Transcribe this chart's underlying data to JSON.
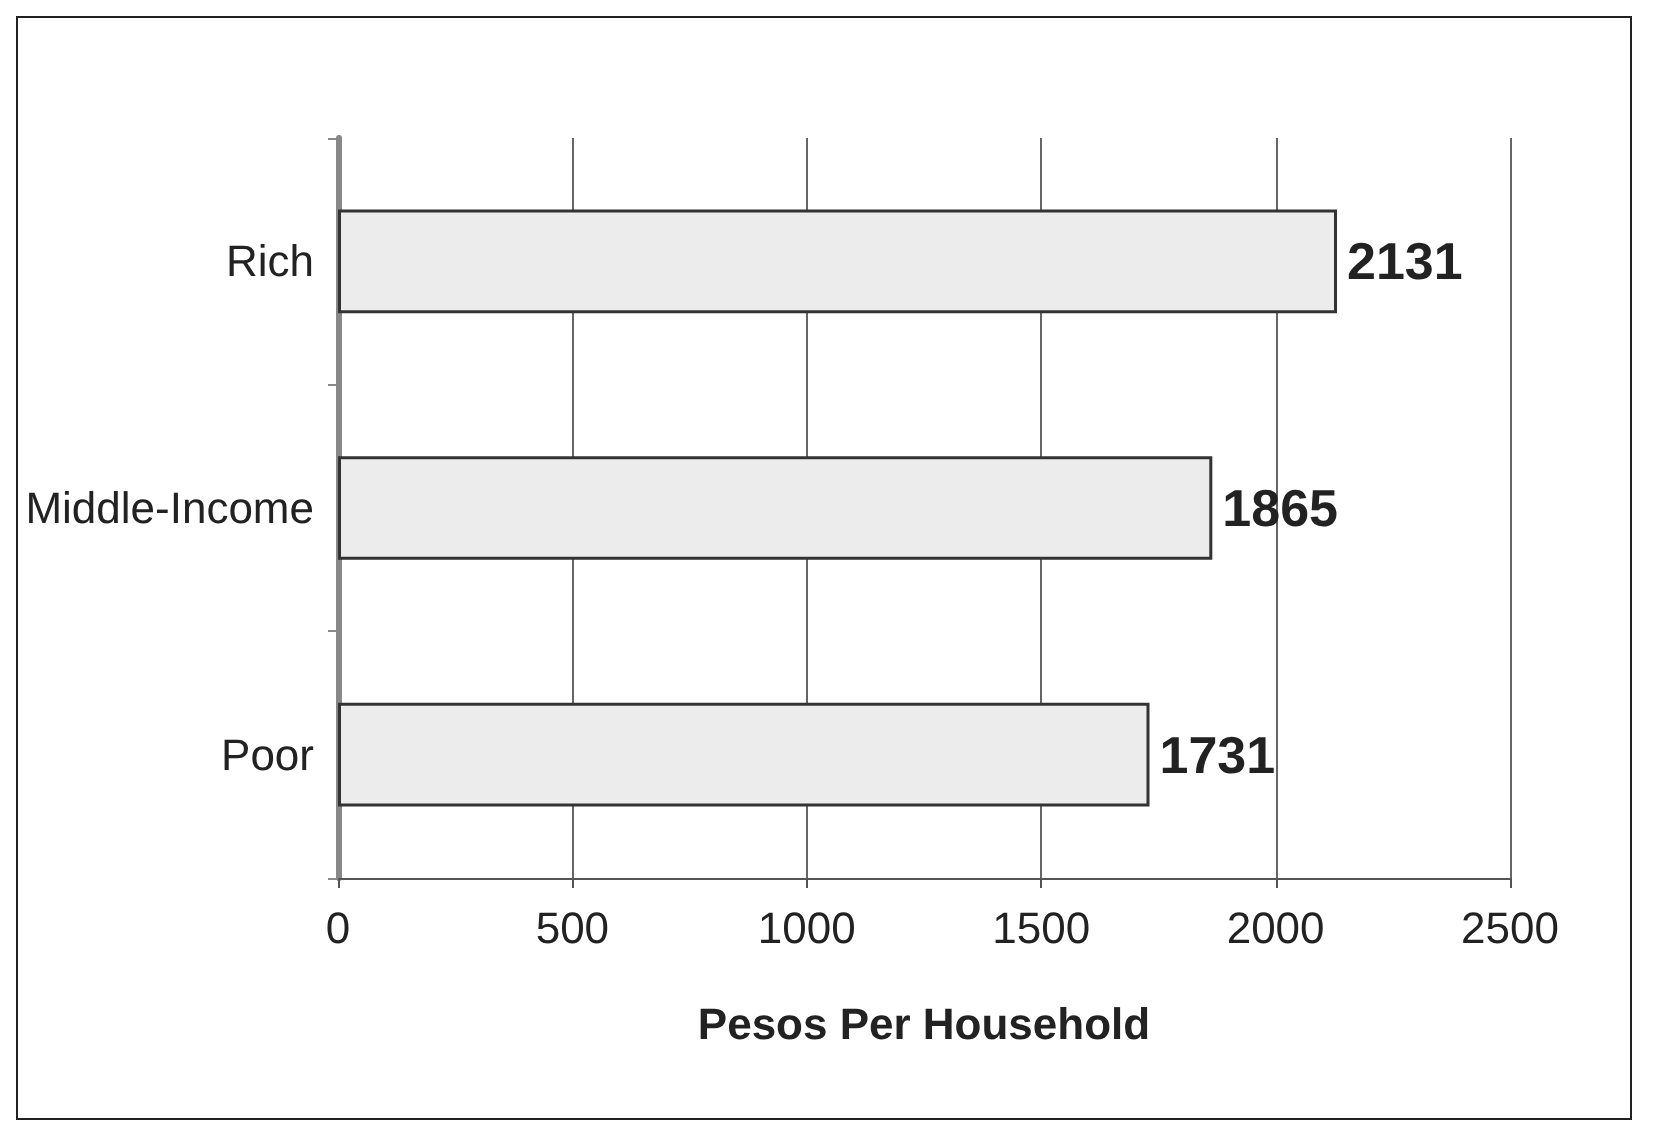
{
  "chart_data": {
    "type": "bar",
    "orientation": "horizontal",
    "categories": [
      "Rich",
      "Middle-Income",
      "Poor"
    ],
    "values": [
      2131,
      1865,
      1731
    ],
    "color": "#ececec",
    "data_labels": true,
    "xlim": [
      0,
      2500
    ],
    "xticks": [
      0,
      500,
      1000,
      1500,
      2000,
      2500
    ],
    "xlabel": "Pesos Per Household",
    "grid": "x"
  }
}
